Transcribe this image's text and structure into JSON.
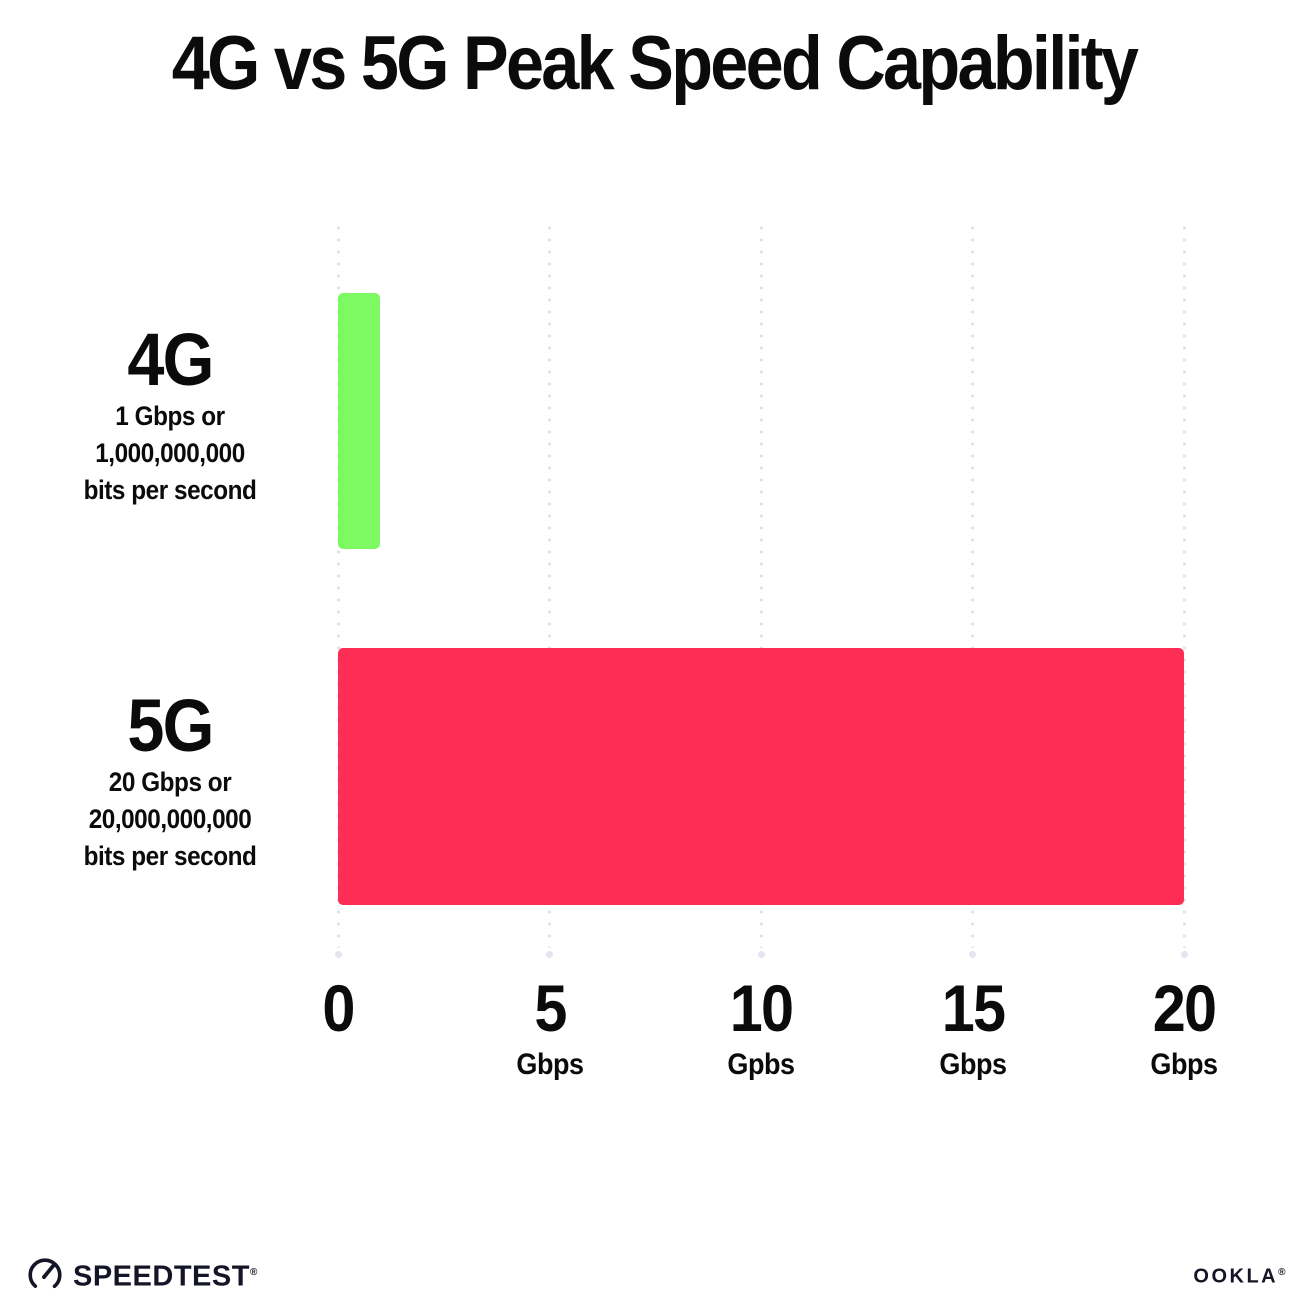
{
  "title": "4G vs 5G Peak Speed Capability",
  "chart_data": {
    "type": "bar",
    "orientation": "horizontal",
    "title": "4G vs 5G Peak Speed Capability",
    "categories": [
      "4G",
      "5G"
    ],
    "values": [
      1,
      20
    ],
    "value_unit": "Gbps",
    "series_colors": [
      "#7dfa62",
      "#fd2d55"
    ],
    "category_sublabels": [
      [
        "1 Gbps or",
        "1,000,000,000",
        "bits per second"
      ],
      [
        "20 Gbps or",
        "20,000,000,000",
        "bits per second"
      ]
    ],
    "xlim": [
      0,
      20
    ],
    "x_ticks": [
      {
        "value": 0,
        "label": "0",
        "unit": ""
      },
      {
        "value": 5,
        "label": "5",
        "unit": "Gbps"
      },
      {
        "value": 10,
        "label": "10",
        "unit": "Gpbs"
      },
      {
        "value": 15,
        "label": "15",
        "unit": "Gbps"
      },
      {
        "value": 20,
        "label": "20",
        "unit": "Gbps"
      }
    ],
    "gridlines": "vertical-dotted",
    "legend": "none"
  },
  "footer": {
    "speedtest": {
      "label": "SPEEDTEST",
      "registered_mark": "®"
    },
    "ookla": {
      "label": "OOKLA",
      "registered_mark": "®"
    }
  },
  "colors": {
    "background": "#ffffff",
    "text": "#0b0b0c",
    "gridline": "#dfe1ee",
    "bar_4g": "#7dfa62",
    "bar_5g": "#fd2d55",
    "footer_logo": "#141526"
  }
}
